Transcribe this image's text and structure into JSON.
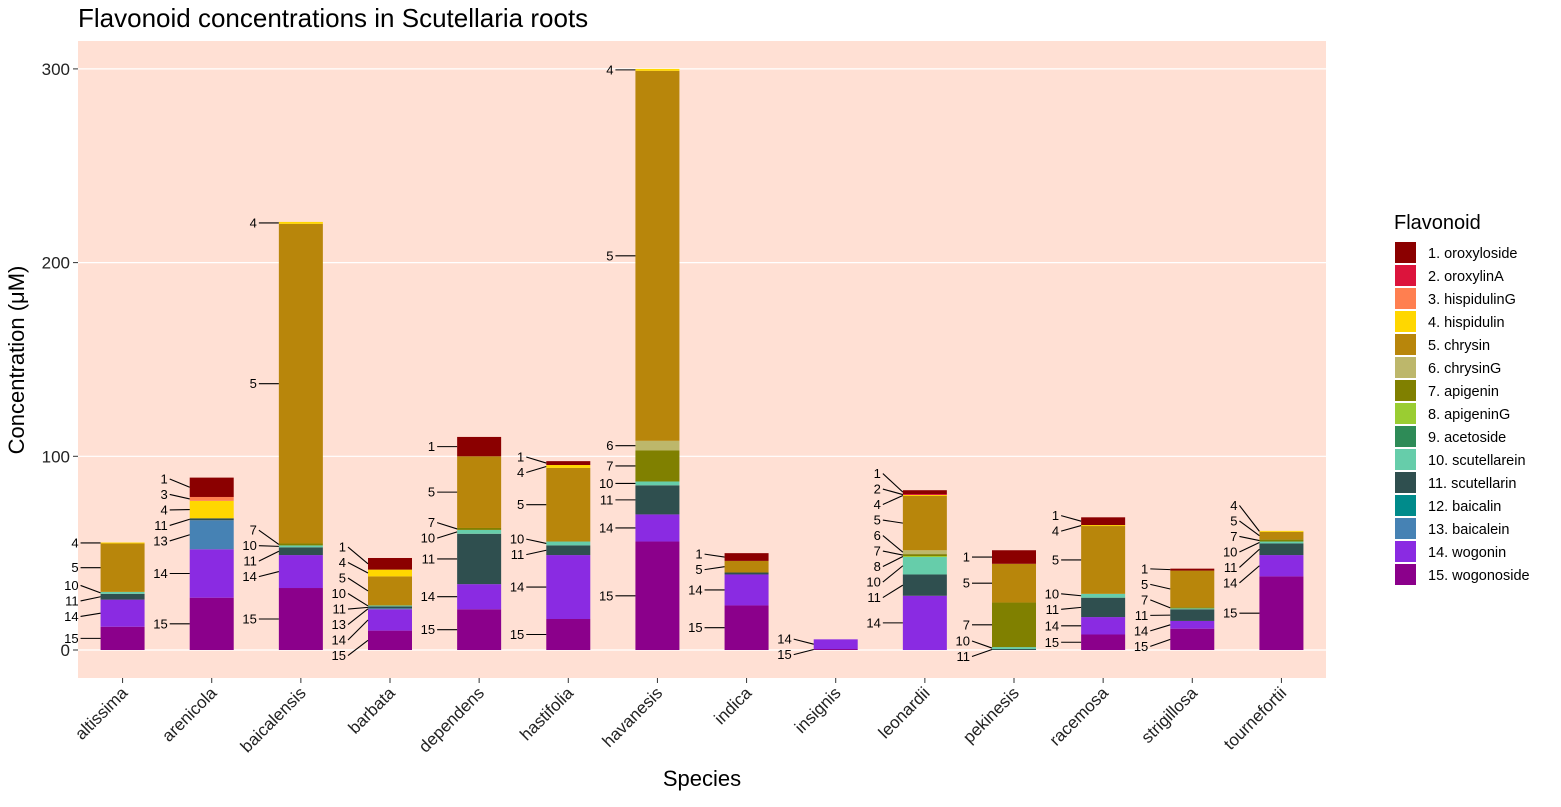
{
  "chart_data": {
    "type": "bar",
    "stacked": true,
    "title": "Flavonoid concentrations in Scutellaria roots",
    "xlabel": "Species",
    "ylabel": "Concentration (μM)",
    "ylim": [
      -15,
      300
    ],
    "yticks": [
      0,
      100,
      200,
      300
    ],
    "grid": true,
    "background_color": "#ffe0d4",
    "legend_position": "right",
    "legend_title": "Flavonoid",
    "categories": [
      "altissima",
      "arenicola",
      "baicalensis",
      "barbata",
      "dependens",
      "hastifolia",
      "havanesis",
      "indica",
      "insignis",
      "leonardii",
      "pekinesis",
      "racemosa",
      "strigillosa",
      "tournefortii"
    ],
    "series": [
      {
        "id": "1",
        "name": "1. oroxyloside",
        "color": "#8b0000",
        "values": [
          0,
          10,
          0,
          6,
          10,
          2,
          0,
          4,
          0,
          2,
          7,
          4,
          1,
          0
        ]
      },
      {
        "id": "2",
        "name": "2. oroxylinA",
        "color": "#dc143c",
        "values": [
          0,
          0,
          0,
          0,
          0,
          0,
          0,
          0,
          0,
          0.5,
          0,
          0,
          0,
          0
        ]
      },
      {
        "id": "3",
        "name": "3. hispidulinG",
        "color": "#ff7f50",
        "values": [
          0,
          2,
          0,
          0,
          0,
          0,
          0,
          0,
          0,
          0,
          0,
          0,
          0,
          0
        ]
      },
      {
        "id": "4",
        "name": "4. hispidulin",
        "color": "#ffd700",
        "values": [
          0.5,
          9,
          1,
          3.5,
          0,
          1.5,
          1,
          0,
          0,
          0.5,
          0,
          0.5,
          0,
          0.5
        ]
      },
      {
        "id": "5",
        "name": "5. chrysin",
        "color": "#b8860b",
        "values": [
          25,
          0,
          165,
          15,
          37,
          38,
          191,
          6,
          0,
          28,
          20,
          35,
          19,
          4
        ]
      },
      {
        "id": "6",
        "name": "6. chrysinG",
        "color": "#bdb76b",
        "values": [
          0,
          0,
          0,
          0,
          0,
          0,
          5,
          0,
          0,
          2,
          0,
          0,
          0,
          0
        ]
      },
      {
        "id": "7",
        "name": "7. apigenin",
        "color": "#808000",
        "values": [
          0,
          0,
          1,
          0,
          1,
          0,
          16,
          0,
          0,
          1,
          23,
          0,
          0.5,
          1
        ]
      },
      {
        "id": "8",
        "name": "8. apigeninG",
        "color": "#9acd32",
        "values": [
          0,
          0,
          0,
          0,
          0,
          0,
          0,
          0,
          0,
          0.5,
          0,
          0,
          0,
          0
        ]
      },
      {
        "id": "9",
        "name": "9. acetoside",
        "color": "#2e8b57",
        "values": [
          0,
          0,
          0,
          0,
          0,
          0,
          0,
          0,
          0,
          0,
          0,
          0,
          0,
          0
        ]
      },
      {
        "id": "10",
        "name": "10. scutellarein",
        "color": "#66cdaa",
        "values": [
          1,
          0,
          1,
          0.5,
          2,
          2,
          2,
          0,
          0,
          9,
          1,
          2,
          0.5,
          1
        ]
      },
      {
        "id": "11",
        "name": "11. scutellarin",
        "color": "#2f4f4f",
        "values": [
          3,
          1,
          4,
          1,
          26,
          5,
          15,
          1,
          0,
          11,
          0.5,
          10,
          6,
          6
        ]
      },
      {
        "id": "12",
        "name": "12. baicalin",
        "color": "#008b8b",
        "values": [
          0,
          0,
          0,
          0,
          0,
          0,
          0,
          0,
          0,
          0,
          0,
          0,
          0,
          0
        ]
      },
      {
        "id": "13",
        "name": "13. baicalein",
        "color": "#4682b4",
        "values": [
          0,
          15,
          0,
          0.5,
          0,
          0,
          0,
          0,
          0,
          0,
          0,
          0,
          0,
          0
        ]
      },
      {
        "id": "14",
        "name": "14. wogonin",
        "color": "#8a2be2",
        "values": [
          14,
          25,
          17,
          11,
          13,
          33,
          14,
          16,
          5,
          28,
          0,
          9,
          4,
          11
        ]
      },
      {
        "id": "15",
        "name": "15. wogonoside",
        "color": "#8b008b",
        "values": [
          12,
          27,
          32,
          10,
          21,
          16,
          56,
          23,
          0.5,
          0,
          0,
          8,
          11,
          38
        ]
      }
    ],
    "segment_labels": [
      [
        "4",
        "5",
        "10",
        "11",
        "14",
        "15"
      ],
      [
        "1",
        "3",
        "4",
        "11",
        "13",
        "14",
        "15"
      ],
      [
        "4",
        "5",
        "7",
        "10",
        "11",
        "14",
        "15"
      ],
      [
        "1",
        "4",
        "5",
        "10",
        "11",
        "13",
        "14",
        "15"
      ],
      [
        "1",
        "5",
        "7",
        "10",
        "11",
        "14",
        "15"
      ],
      [
        "1",
        "4",
        "5",
        "10",
        "11",
        "14",
        "15"
      ],
      [
        "4",
        "5",
        "6",
        "7",
        "10",
        "11",
        "14",
        "15"
      ],
      [
        "1",
        "5",
        "14",
        "15"
      ],
      [
        "14",
        "15"
      ],
      [
        "1",
        "2",
        "4",
        "5",
        "6",
        "7",
        "8",
        "10",
        "11",
        "14"
      ],
      [
        "1",
        "5",
        "7",
        "10",
        "11"
      ],
      [
        "1",
        "4",
        "5",
        "10",
        "11",
        "14",
        "15"
      ],
      [
        "1",
        "5",
        "7",
        "11",
        "14",
        "15"
      ],
      [
        "4",
        "5",
        "7",
        "10",
        "11",
        "14",
        "15"
      ]
    ]
  }
}
